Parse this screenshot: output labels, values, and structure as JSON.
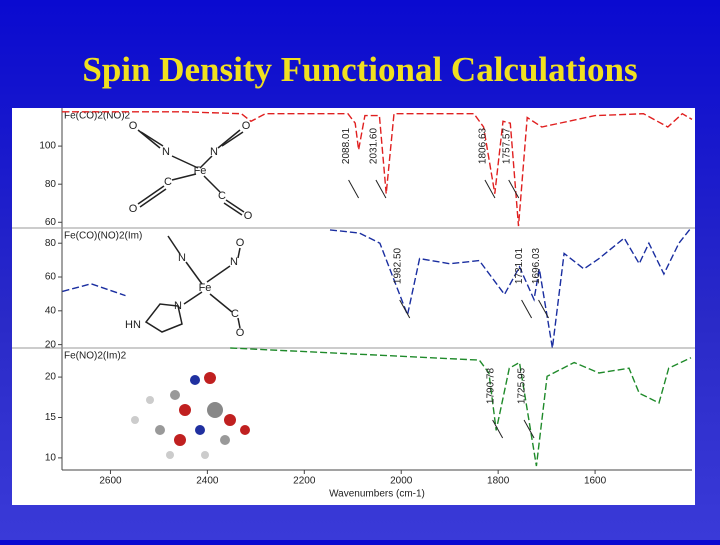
{
  "title": "Spin Density Functional Calculations",
  "structure_labels": [
    [
      "O",
      "N",
      "N",
      "O",
      "C",
      "Fe",
      "C",
      "O",
      "O"
    ],
    [
      "O",
      "N",
      "N",
      "Fe",
      "N",
      "HN",
      "C",
      "O"
    ]
  ],
  "chart_data": [
    {
      "type": "line",
      "xlim": [
        2700,
        1400
      ],
      "ylim": [
        57,
        120
      ],
      "yticks": [
        60,
        80,
        100
      ],
      "x": [
        2700,
        2450,
        2330,
        2310,
        2280,
        2110,
        2095,
        2088,
        2075,
        2045,
        2031,
        2015,
        1850,
        1830,
        1807,
        1790,
        1775,
        1758,
        1740,
        1710,
        1600,
        1500,
        1450,
        1420,
        1400
      ],
      "series": [
        {
          "name": "Fe(CO)2(NO)2",
          "color": "#e02020",
          "values": [
            118,
            118,
            117,
            113,
            117,
            117,
            112,
            98,
            116,
            116,
            75,
            117,
            117,
            110,
            75,
            113,
            112,
            58,
            115,
            110,
            116,
            117,
            110,
            117,
            114
          ]
        }
      ],
      "peaks": [
        2088.01,
        {
          "value": 2031.6,
          "label": "2031.60"
        },
        1806.63,
        1757.57
      ]
    },
    {
      "type": "line",
      "xlim": [
        2700,
        1400
      ],
      "ylim": [
        18,
        89
      ],
      "yticks": [
        20,
        40,
        60,
        80
      ],
      "x": [
        2699,
        2640,
        2569,
        2350,
        2147,
        2086,
        2044,
        1987,
        1962,
        1900,
        1839,
        1787,
        1756,
        1726,
        1715,
        1688,
        1664,
        1623,
        1592,
        1540,
        1509,
        1489,
        1458,
        1427,
        1402
      ],
      "series": [
        {
          "name": "Fe(CO)(NO)2(Im)",
          "color": "#1a2ea0",
          "values": [
            51.5,
            56,
            49,
            null,
            87.9,
            86,
            80,
            37.6,
            70.9,
            67.9,
            69.7,
            49.7,
            66,
            46.7,
            64.8,
            18,
            74,
            64.8,
            70.9,
            83,
            67.9,
            80,
            61.8,
            80,
            89
          ]
        }
      ],
      "peaks": [
        {
          "value": 1982.5,
          "label": "1982.50"
        },
        1731.01,
        1696.03
      ]
    },
    {
      "type": "line",
      "xlim": [
        2700,
        1400
      ],
      "ylim": [
        8.5,
        23.6
      ],
      "yticks": [
        10,
        15,
        20
      ],
      "xticks": [
        2600,
        2400,
        2200,
        2000,
        1800,
        1600
      ],
      "xlabel": "Wavenumbers (cm-1)",
      "x": [
        2353,
        2147,
        1839,
        1819,
        1804,
        1777,
        1756,
        1721,
        1699,
        1643,
        1592,
        1530,
        1509,
        1468,
        1448,
        1402
      ],
      "series": [
        {
          "name": "Fe(NO)2(Im)2",
          "color": "#1f8a2a",
          "values": [
            23.6,
            23,
            22.1,
            20.5,
            13.4,
            21.1,
            21.8,
            9,
            20.1,
            21.8,
            20.5,
            21.1,
            18,
            16.8,
            21.1,
            22.4
          ]
        }
      ],
      "peaks": [
        1790.78,
        1725.95
      ]
    }
  ]
}
